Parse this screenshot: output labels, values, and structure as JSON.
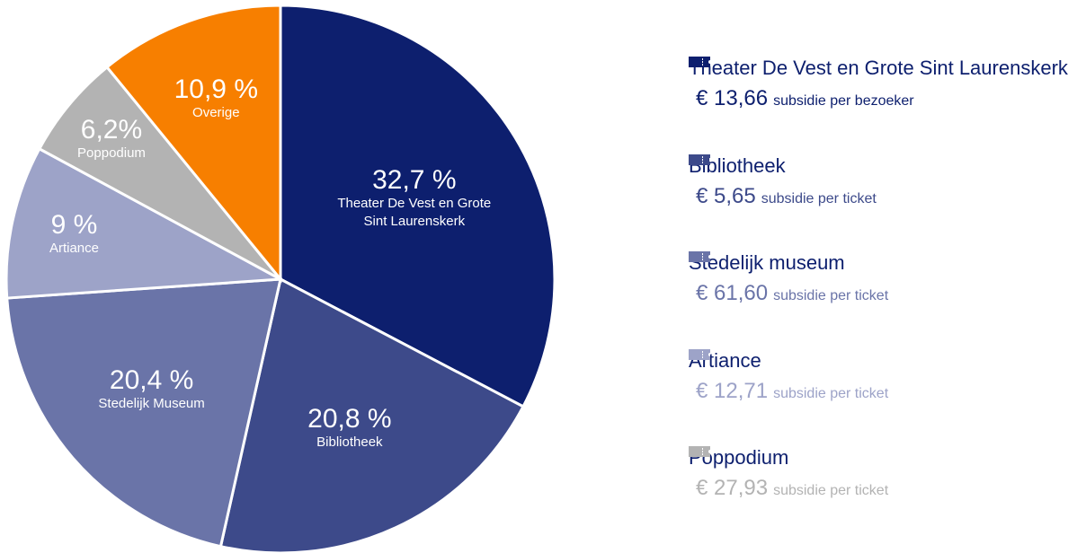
{
  "chart_data": {
    "type": "pie",
    "categories": [
      "Theater De Vest en Grote Sint Laurenskerk",
      "Bibliotheek",
      "Stedelijk Museum",
      "Artiance",
      "Poppodium",
      "Overige"
    ],
    "values": [
      32.7,
      20.8,
      20.4,
      9,
      6.2,
      10.9
    ],
    "value_labels": [
      "32,7 %",
      "20,8 %",
      "20,4 %",
      "9 %",
      "6,2%",
      "10,9 %"
    ],
    "colors": [
      "#0d1f6e",
      "#3d4a8a",
      "#6a74a8",
      "#9da3c8",
      "#b3b3b3",
      "#f77f00"
    ]
  },
  "panel": [
    {
      "name": "Theater De Vest en Grote Sint Laurenskerk",
      "price": "€ 13,66",
      "unit": "subsidie per bezoeker",
      "color": "#0d1f6e"
    },
    {
      "name": "Bibliotheek",
      "price": "€ 5,65",
      "unit": "subsidie per ticket",
      "color": "#3d4a8a"
    },
    {
      "name": "Stedelijk museum",
      "price": "€ 61,60",
      "unit": "subsidie per ticket",
      "color": "#6a74a8"
    },
    {
      "name": "Artiance",
      "price": "€ 12,71",
      "unit": "subsidie per ticket",
      "color": "#9da3c8"
    },
    {
      "name": "Poppodium",
      "price": "€ 27,93",
      "unit": "subsidie per ticket",
      "color": "#b3b3b3"
    }
  ]
}
